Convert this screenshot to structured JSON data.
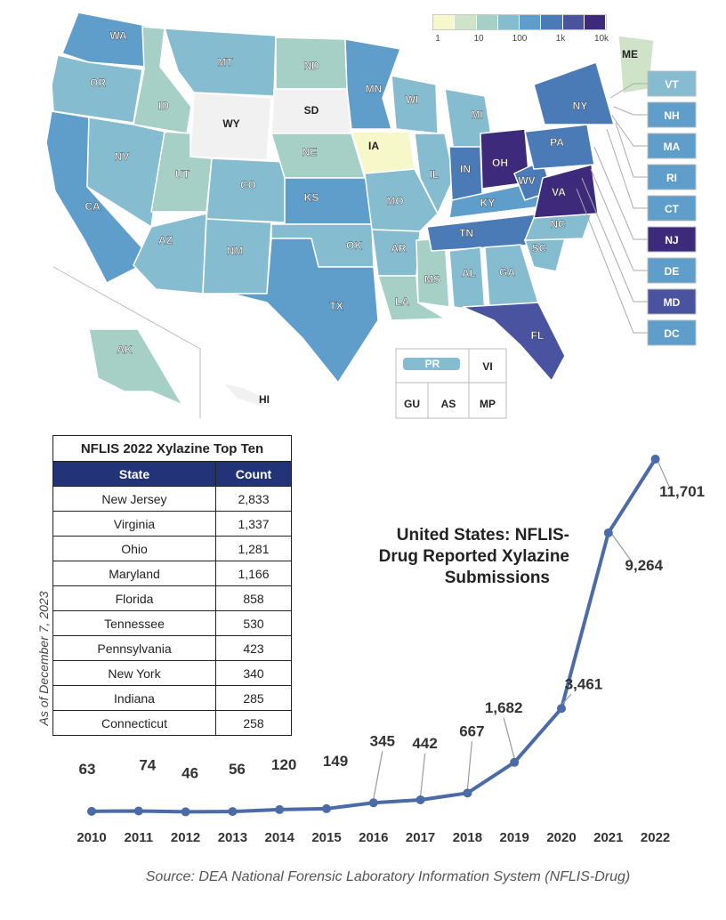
{
  "colors": {
    "map_scale": [
      "#f7f8c9",
      "#cfe3c8",
      "#a6d0c6",
      "#86bcd0",
      "#5f9dca",
      "#4a7bb6",
      "#4a53a0",
      "#3d2a7a"
    ],
    "line": "#4a6aa8",
    "table_header": "#223477",
    "no_data": "#f1f1f1"
  },
  "legend": {
    "ticks": [
      "1",
      "10",
      "100",
      "1k",
      "10k"
    ]
  },
  "map": {
    "states": [
      "WA",
      "OR",
      "CA",
      "ID",
      "NV",
      "MT",
      "WY",
      "UT",
      "AZ",
      "CO",
      "NM",
      "ND",
      "SD",
      "NE",
      "KS",
      "OK",
      "TX",
      "MN",
      "IA",
      "MO",
      "AR",
      "LA",
      "WI",
      "IL",
      "MS",
      "MI",
      "IN",
      "KY",
      "TN",
      "AL",
      "OH",
      "GA",
      "FL",
      "SC",
      "NC",
      "WV",
      "VA",
      "PA",
      "NY",
      "ME",
      "AK",
      "HI"
    ],
    "boxes": [
      "VT",
      "NH",
      "MA",
      "RI",
      "CT",
      "NJ",
      "DE",
      "MD",
      "DC"
    ],
    "territories": [
      "PR",
      "VI",
      "GU",
      "AS",
      "MP"
    ]
  },
  "table": {
    "title": "NFLIS 2022 Xylazine Top Ten",
    "headers": [
      "State",
      "Count"
    ],
    "rows": [
      {
        "state": "New Jersey",
        "count": "2,833"
      },
      {
        "state": "Virginia",
        "count": "1,337"
      },
      {
        "state": "Ohio",
        "count": "1,281"
      },
      {
        "state": "Maryland",
        "count": "1,166"
      },
      {
        "state": "Florida",
        "count": "858"
      },
      {
        "state": "Tennessee",
        "count": "530"
      },
      {
        "state": "Pennsylvania",
        "count": "423"
      },
      {
        "state": "New York",
        "count": "340"
      },
      {
        "state": "Indiana",
        "count": "285"
      },
      {
        "state": "Connecticut",
        "count": "258"
      }
    ],
    "as_of": "As of  December 7, 2023"
  },
  "chart_title": [
    "United States: NFLIS-",
    "Drug Reported Xylazine",
    "Submissions"
  ],
  "chart_data": {
    "type": "line",
    "title": "United States: NFLIS-Drug Reported Xylazine Submissions",
    "x": [
      "2010",
      "2011",
      "2012",
      "2013",
      "2014",
      "2015",
      "2016",
      "2017",
      "2018",
      "2019",
      "2020",
      "2021",
      "2022"
    ],
    "values": [
      63,
      74,
      46,
      56,
      120,
      149,
      345,
      442,
      667,
      1682,
      3461,
      9264,
      11701
    ],
    "labels": [
      "63",
      "74",
      "46",
      "56",
      "120",
      "149",
      "345",
      "442",
      "667",
      "1,682",
      "3,461",
      "9,264",
      "11,701"
    ],
    "ylim": [
      0,
      11701
    ],
    "grid": false
  },
  "source": "Source: DEA National Forensic Laboratory Information System (NFLIS-Drug)"
}
